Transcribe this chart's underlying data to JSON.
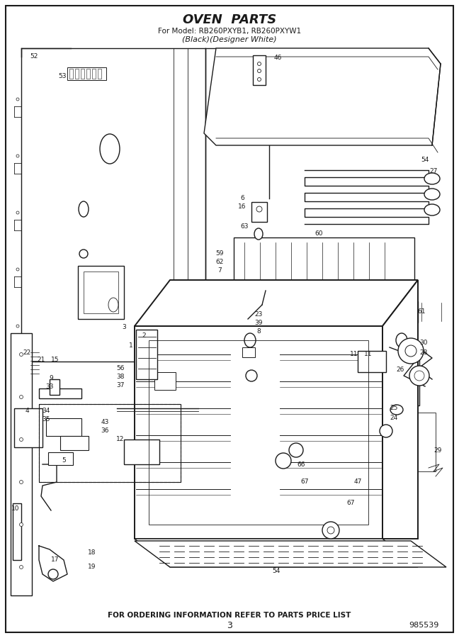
{
  "title_line1": "OVEN  PARTS",
  "title_line2": "For Model: RB260PXYB1, RB260PXYW1",
  "title_line3": "(Black)(Designer White)",
  "footer_text": "FOR ORDERING INFORMATION REFER TO PARTS PRICE LIST",
  "page_number": "3",
  "part_number": "985539",
  "background_color": "#ffffff",
  "border_color": "#000000",
  "text_color": "#000000",
  "fig_width": 6.48,
  "fig_height": 9.0,
  "dpi": 100
}
